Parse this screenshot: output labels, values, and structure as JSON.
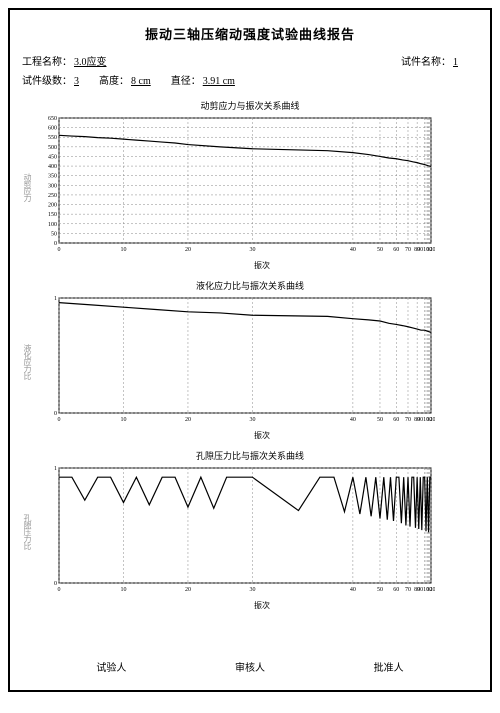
{
  "title": "振动三轴压缩动强度试验曲线报告",
  "meta": {
    "row1": [
      {
        "label": "工程名称：",
        "value": "3.0应变"
      },
      {
        "label": "试件名称：",
        "value": "1"
      }
    ],
    "row2": [
      {
        "label": "试件级数：",
        "value": "3"
      },
      {
        "label": "高度：",
        "value": "8 cm"
      },
      {
        "label": "直径：",
        "value": "3.91 cm"
      }
    ]
  },
  "charts": [
    {
      "title": "动剪应力与振次关系曲线",
      "ylabel": "动剪应力",
      "xlabel": "振次",
      "height": 145,
      "xlim": [
        0,
        100
      ],
      "xscale": "log-like",
      "ylim": [
        0,
        650
      ],
      "ytick_step": 50,
      "xticks": [
        0,
        10,
        20,
        30,
        40,
        50,
        60,
        70,
        80,
        90,
        100
      ],
      "xtick_labels": [
        "0",
        "10",
        "20",
        "30",
        "40",
        "50",
        "60",
        "70",
        "80",
        "90100",
        "120"
      ],
      "bg": "#ffffff",
      "grid": "#888",
      "line": "#000",
      "series": [
        [
          0,
          560
        ],
        [
          2,
          556
        ],
        [
          4,
          553
        ],
        [
          6,
          548
        ],
        [
          8,
          545
        ],
        [
          10,
          540
        ],
        [
          12,
          535
        ],
        [
          14,
          530
        ],
        [
          16,
          525
        ],
        [
          18,
          520
        ],
        [
          20,
          512
        ],
        [
          25,
          500
        ],
        [
          30,
          490
        ],
        [
          35,
          480
        ],
        [
          40,
          470
        ],
        [
          45,
          460
        ],
        [
          50,
          450
        ],
        [
          55,
          442
        ],
        [
          60,
          438
        ],
        [
          65,
          432
        ],
        [
          70,
          428
        ],
        [
          75,
          422
        ],
        [
          80,
          418
        ],
        [
          85,
          412
        ],
        [
          90,
          408
        ],
        [
          95,
          402
        ],
        [
          100,
          398
        ]
      ]
    },
    {
      "title": "液化应力比与振次关系曲线",
      "ylabel": "液化应力比",
      "xlabel": "振次",
      "height": 135,
      "xlim": [
        0,
        100
      ],
      "ylim": [
        0,
        1
      ],
      "yticks": [
        0,
        1
      ],
      "xticks": [
        0,
        10,
        20,
        30,
        40,
        50,
        60,
        70,
        80,
        90,
        100
      ],
      "xtick_labels": [
        "0",
        "10",
        "20",
        "30",
        "40",
        "50",
        "60",
        "70",
        "80",
        "90100",
        "120"
      ],
      "bg": "#ffffff",
      "grid": "#888",
      "line": "#000",
      "series": [
        [
          0,
          0.96
        ],
        [
          5,
          0.94
        ],
        [
          10,
          0.92
        ],
        [
          15,
          0.9
        ],
        [
          20,
          0.88
        ],
        [
          25,
          0.87
        ],
        [
          30,
          0.85
        ],
        [
          35,
          0.84
        ],
        [
          40,
          0.82
        ],
        [
          45,
          0.81
        ],
        [
          50,
          0.8
        ],
        [
          55,
          0.78
        ],
        [
          60,
          0.77
        ],
        [
          65,
          0.76
        ],
        [
          70,
          0.75
        ],
        [
          75,
          0.74
        ],
        [
          80,
          0.73
        ],
        [
          85,
          0.72
        ],
        [
          90,
          0.72
        ],
        [
          95,
          0.71
        ],
        [
          100,
          0.7
        ]
      ]
    },
    {
      "title": "孔隙压力比与振次关系曲线",
      "ylabel": "孔隙压力比",
      "xlabel": "振次",
      "height": 135,
      "xlim": [
        0,
        100
      ],
      "ylim": [
        0,
        1
      ],
      "yticks": [
        0,
        1
      ],
      "xticks": [
        0,
        10,
        20,
        30,
        40,
        50,
        60,
        70,
        80,
        90,
        100
      ],
      "xtick_labels": [
        "0",
        "10",
        "20",
        "30",
        "40",
        "50",
        "60",
        "70",
        "80",
        "90100",
        "120"
      ],
      "bg": "#ffffff",
      "grid": "#888",
      "line": "#000",
      "series": [
        [
          0,
          0.92
        ],
        [
          2,
          0.92
        ],
        [
          4,
          0.72
        ],
        [
          6,
          0.92
        ],
        [
          8,
          0.92
        ],
        [
          10,
          0.7
        ],
        [
          12,
          0.92
        ],
        [
          14,
          0.68
        ],
        [
          16,
          0.92
        ],
        [
          18,
          0.92
        ],
        [
          20,
          0.66
        ],
        [
          22,
          0.92
        ],
        [
          24,
          0.65
        ],
        [
          26,
          0.92
        ],
        [
          28,
          0.92
        ],
        [
          30,
          0.92
        ],
        [
          32,
          0.63
        ],
        [
          34,
          0.92
        ],
        [
          36,
          0.92
        ],
        [
          38,
          0.62
        ],
        [
          40,
          0.92
        ],
        [
          42,
          0.6
        ],
        [
          44,
          0.92
        ],
        [
          46,
          0.58
        ],
        [
          48,
          0.92
        ],
        [
          50,
          0.56
        ],
        [
          52,
          0.92
        ],
        [
          54,
          0.55
        ],
        [
          56,
          0.92
        ],
        [
          58,
          0.54
        ],
        [
          60,
          0.92
        ],
        [
          62,
          0.92
        ],
        [
          64,
          0.52
        ],
        [
          66,
          0.92
        ],
        [
          68,
          0.5
        ],
        [
          70,
          0.92
        ],
        [
          72,
          0.49
        ],
        [
          74,
          0.92
        ],
        [
          76,
          0.92
        ],
        [
          78,
          0.48
        ],
        [
          80,
          0.92
        ],
        [
          82,
          0.47
        ],
        [
          84,
          0.92
        ],
        [
          86,
          0.46
        ],
        [
          88,
          0.92
        ],
        [
          90,
          0.92
        ],
        [
          92,
          0.45
        ],
        [
          94,
          0.92
        ],
        [
          96,
          0.44
        ],
        [
          98,
          0.92
        ],
        [
          100,
          0.92
        ]
      ]
    }
  ],
  "footer": {
    "tester": "试验人",
    "reviewer": "审核人",
    "approver": "批准人"
  }
}
